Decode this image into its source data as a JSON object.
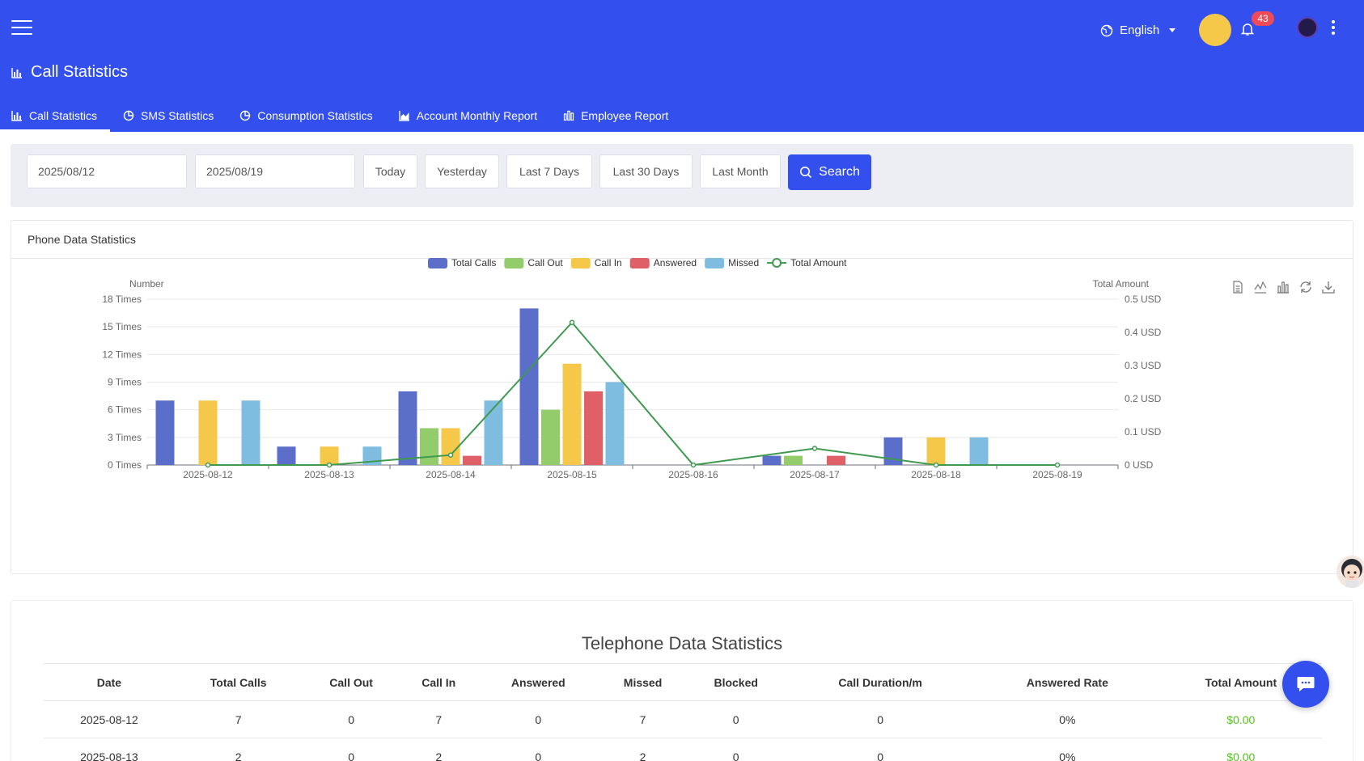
{
  "header": {
    "page_title": "Call Statistics",
    "language": "English",
    "notification_count": "43",
    "tabs": [
      {
        "label": "Call Statistics",
        "icon": "bar-chart-icon",
        "active": true
      },
      {
        "label": "SMS Statistics",
        "icon": "pie-chart-icon",
        "active": false
      },
      {
        "label": "Consumption Statistics",
        "icon": "pie-chart-icon",
        "active": false
      },
      {
        "label": "Account Monthly Report",
        "icon": "area-chart-icon",
        "active": false
      },
      {
        "label": "Employee Report",
        "icon": "column-chart-icon",
        "active": false
      }
    ],
    "colors": {
      "primary": "#3350ef",
      "badge": "#f04a59"
    }
  },
  "filters": {
    "start_date": "2025/08/12",
    "end_date": "2025/08/19",
    "quick_ranges": [
      "Today",
      "Yesterday",
      "Last 7 Days",
      "Last 30 Days",
      "Last Month"
    ],
    "search_label": "Search"
  },
  "chart_card": {
    "title": "Phone Data Statistics",
    "toolbox": [
      "data-view-icon",
      "line-switch-icon",
      "bar-switch-icon",
      "restore-icon",
      "download-icon"
    ]
  },
  "chart_data": {
    "type": "bar",
    "categories": [
      "2025-08-12",
      "2025-08-13",
      "2025-08-14",
      "2025-08-15",
      "2025-08-16",
      "2025-08-17",
      "2025-08-18",
      "2025-08-19"
    ],
    "series": [
      {
        "name": "Total Calls",
        "type": "bar",
        "color": "#5b6ec9",
        "values": [
          7,
          2,
          8,
          17,
          0,
          1,
          3,
          0
        ]
      },
      {
        "name": "Call Out",
        "type": "bar",
        "color": "#93cc6a",
        "values": [
          0,
          0,
          4,
          6,
          0,
          1,
          0,
          0
        ]
      },
      {
        "name": "Call In",
        "type": "bar",
        "color": "#f5c84a",
        "values": [
          7,
          2,
          4,
          11,
          0,
          0,
          3,
          0
        ]
      },
      {
        "name": "Answered",
        "type": "bar",
        "color": "#e06068",
        "values": [
          0,
          0,
          1,
          8,
          0,
          1,
          0,
          0
        ]
      },
      {
        "name": "Missed",
        "type": "bar",
        "color": "#7ebde0",
        "values": [
          7,
          2,
          7,
          9,
          0,
          0,
          3,
          0
        ]
      },
      {
        "name": "Total Amount",
        "type": "line",
        "axis": "right",
        "color": "#3f9a4f",
        "values": [
          0,
          0,
          0.03,
          0.43,
          0,
          0.05,
          0,
          0
        ]
      }
    ],
    "ylabel": "Number",
    "ylabel_right": "Total Amount",
    "ylim": [
      0,
      18
    ],
    "ylim_right": [
      0,
      0.5
    ],
    "yticks": [
      "0 Times",
      "3 Times",
      "6 Times",
      "9 Times",
      "12 Times",
      "15 Times",
      "18 Times"
    ],
    "yticks_right": [
      "0 USD",
      "0.1 USD",
      "0.2 USD",
      "0.3 USD",
      "0.4 USD",
      "0.5 USD"
    ],
    "grid": true,
    "legend": "top-center"
  },
  "table": {
    "title": "Telephone Data Statistics",
    "columns": [
      "Date",
      "Total Calls",
      "Call Out",
      "Call In",
      "Answered",
      "Missed",
      "Blocked",
      "Call Duration/m",
      "Answered Rate",
      "Total Amount"
    ],
    "rows": [
      [
        "2025-08-12",
        "7",
        "0",
        "7",
        "0",
        "7",
        "0",
        "0",
        "0%",
        "$0.00"
      ],
      [
        "2025-08-13",
        "2",
        "0",
        "2",
        "0",
        "2",
        "0",
        "0",
        "0%",
        "$0.00"
      ]
    ]
  }
}
